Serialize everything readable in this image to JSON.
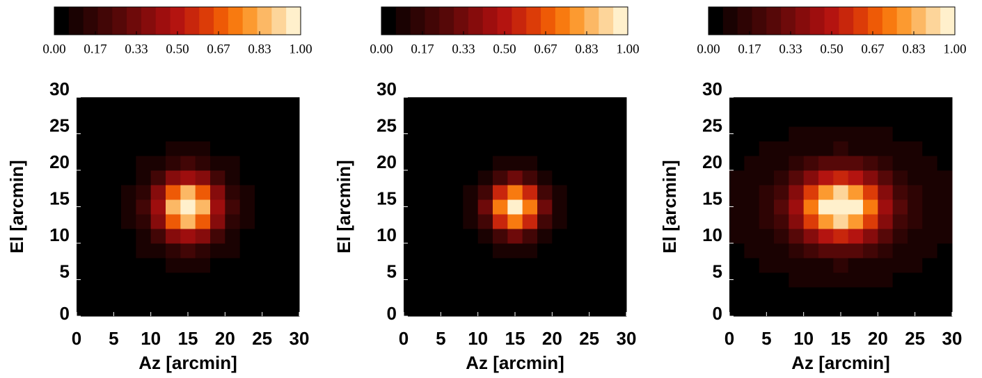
{
  "chart_data": [
    {
      "type": "heatmap",
      "xlabel": "Az [arcmin]",
      "ylabel": "El [arcmin]",
      "x": [
        1,
        3,
        5,
        7,
        9,
        11,
        13,
        15,
        17,
        19,
        21,
        23,
        25,
        27,
        29
      ],
      "y": [
        1,
        3,
        5,
        7,
        9,
        11,
        13,
        15,
        17,
        19,
        21,
        23,
        25,
        27,
        29
      ],
      "z": [
        [
          0.04,
          0.04,
          0.04,
          0.04,
          0.04,
          0.04,
          0.04,
          0.04,
          0.04,
          0.04,
          0.04,
          0.04,
          0.04,
          0.04,
          0.04
        ],
        [
          0.04,
          0.04,
          0.04,
          0.04,
          0.04,
          0.04,
          0.04,
          0.04,
          0.04,
          0.04,
          0.04,
          0.04,
          0.04,
          0.04,
          0.04
        ],
        [
          0.04,
          0.04,
          0.04,
          0.04,
          0.04,
          0.04,
          0.04,
          0.04,
          0.04,
          0.04,
          0.04,
          0.04,
          0.04,
          0.04,
          0.04
        ],
        [
          0.04,
          0.04,
          0.04,
          0.04,
          0.04,
          0.05,
          0.06,
          0.07,
          0.06,
          0.05,
          0.04,
          0.04,
          0.04,
          0.04,
          0.04
        ],
        [
          0.04,
          0.04,
          0.04,
          0.04,
          0.06,
          0.1,
          0.15,
          0.18,
          0.15,
          0.1,
          0.06,
          0.04,
          0.04,
          0.04,
          0.04
        ],
        [
          0.04,
          0.04,
          0.04,
          0.05,
          0.1,
          0.21,
          0.37,
          0.45,
          0.37,
          0.21,
          0.1,
          0.05,
          0.04,
          0.04,
          0.04
        ],
        [
          0.04,
          0.04,
          0.04,
          0.06,
          0.15,
          0.37,
          0.68,
          0.84,
          0.68,
          0.37,
          0.15,
          0.06,
          0.04,
          0.04,
          0.04
        ],
        [
          0.04,
          0.04,
          0.04,
          0.07,
          0.18,
          0.45,
          0.84,
          1.0,
          0.84,
          0.45,
          0.18,
          0.07,
          0.04,
          0.04,
          0.04
        ],
        [
          0.04,
          0.04,
          0.04,
          0.06,
          0.15,
          0.37,
          0.68,
          0.84,
          0.68,
          0.37,
          0.15,
          0.06,
          0.04,
          0.04,
          0.04
        ],
        [
          0.04,
          0.04,
          0.04,
          0.05,
          0.1,
          0.21,
          0.37,
          0.45,
          0.37,
          0.21,
          0.1,
          0.05,
          0.04,
          0.04,
          0.04
        ],
        [
          0.04,
          0.04,
          0.04,
          0.04,
          0.06,
          0.1,
          0.15,
          0.18,
          0.15,
          0.1,
          0.06,
          0.04,
          0.04,
          0.04,
          0.04
        ],
        [
          0.04,
          0.04,
          0.04,
          0.04,
          0.04,
          0.05,
          0.06,
          0.07,
          0.06,
          0.05,
          0.04,
          0.04,
          0.04,
          0.04,
          0.04
        ],
        [
          0.04,
          0.04,
          0.04,
          0.04,
          0.04,
          0.04,
          0.04,
          0.04,
          0.04,
          0.04,
          0.04,
          0.04,
          0.04,
          0.04,
          0.04
        ],
        [
          0.04,
          0.04,
          0.04,
          0.04,
          0.04,
          0.04,
          0.04,
          0.04,
          0.04,
          0.04,
          0.04,
          0.04,
          0.04,
          0.04,
          0.04
        ],
        [
          0.04,
          0.04,
          0.04,
          0.04,
          0.04,
          0.04,
          0.04,
          0.04,
          0.04,
          0.04,
          0.04,
          0.04,
          0.04,
          0.04,
          0.04
        ]
      ],
      "xlim": [
        0,
        30
      ],
      "ylim": [
        0,
        30
      ],
      "xticks": [
        0,
        5,
        10,
        15,
        20,
        25,
        30
      ],
      "yticks": [
        0,
        5,
        10,
        15,
        20,
        25,
        30
      ],
      "colorbar": {
        "lim": [
          0,
          1
        ],
        "ticks": [
          {
            "value": 0,
            "label": "0.00"
          },
          {
            "value": 0.1667,
            "label": "0.17"
          },
          {
            "value": 0.3333,
            "label": "0.33"
          },
          {
            "value": 0.5,
            "label": "0.50"
          },
          {
            "value": 0.6667,
            "label": "0.67"
          },
          {
            "value": 0.8333,
            "label": "0.83"
          },
          {
            "value": 1,
            "label": "1.00"
          }
        ],
        "colors": [
          "#000000",
          "#1a0202",
          "#2e0404",
          "#420606",
          "#560808",
          "#6e0a0a",
          "#860c0c",
          "#9e0e0e",
          "#b41410",
          "#c8260c",
          "#dc3c08",
          "#ee5a06",
          "#f87a10",
          "#fc9a30",
          "#fcb865",
          "#fdd59a",
          "#fff0cc"
        ]
      }
    },
    {
      "type": "heatmap",
      "xlabel": "Az [arcmin]",
      "ylabel": "El [arcmin]",
      "x": [
        1,
        3,
        5,
        7,
        9,
        11,
        13,
        15,
        17,
        19,
        21,
        23,
        25,
        27,
        29
      ],
      "y": [
        1,
        3,
        5,
        7,
        9,
        11,
        13,
        15,
        17,
        19,
        21,
        23,
        25,
        27,
        29
      ],
      "z": [
        [
          0.03,
          0.03,
          0.03,
          0.03,
          0.03,
          0.03,
          0.03,
          0.03,
          0.03,
          0.03,
          0.03,
          0.03,
          0.03,
          0.03,
          0.03
        ],
        [
          0.03,
          0.03,
          0.03,
          0.03,
          0.03,
          0.03,
          0.03,
          0.03,
          0.03,
          0.03,
          0.03,
          0.03,
          0.03,
          0.03,
          0.03
        ],
        [
          0.03,
          0.03,
          0.03,
          0.03,
          0.03,
          0.03,
          0.03,
          0.03,
          0.03,
          0.03,
          0.03,
          0.03,
          0.03,
          0.03,
          0.03
        ],
        [
          0.03,
          0.03,
          0.03,
          0.03,
          0.03,
          0.03,
          0.04,
          0.04,
          0.04,
          0.03,
          0.03,
          0.03,
          0.03,
          0.03,
          0.03
        ],
        [
          0.03,
          0.03,
          0.03,
          0.03,
          0.03,
          0.05,
          0.07,
          0.09,
          0.07,
          0.05,
          0.03,
          0.03,
          0.03,
          0.03,
          0.03
        ],
        [
          0.03,
          0.03,
          0.03,
          0.03,
          0.05,
          0.11,
          0.23,
          0.31,
          0.23,
          0.11,
          0.05,
          0.03,
          0.03,
          0.03,
          0.03
        ],
        [
          0.03,
          0.03,
          0.03,
          0.04,
          0.07,
          0.23,
          0.56,
          0.76,
          0.56,
          0.23,
          0.07,
          0.04,
          0.03,
          0.03,
          0.03
        ],
        [
          0.03,
          0.03,
          0.03,
          0.04,
          0.09,
          0.31,
          0.76,
          1.0,
          0.76,
          0.31,
          0.09,
          0.04,
          0.03,
          0.03,
          0.03
        ],
        [
          0.03,
          0.03,
          0.03,
          0.04,
          0.07,
          0.23,
          0.56,
          0.76,
          0.56,
          0.23,
          0.07,
          0.04,
          0.03,
          0.03,
          0.03
        ],
        [
          0.03,
          0.03,
          0.03,
          0.03,
          0.05,
          0.11,
          0.23,
          0.31,
          0.23,
          0.11,
          0.05,
          0.03,
          0.03,
          0.03,
          0.03
        ],
        [
          0.03,
          0.03,
          0.03,
          0.03,
          0.03,
          0.05,
          0.07,
          0.09,
          0.07,
          0.05,
          0.03,
          0.03,
          0.03,
          0.03,
          0.03
        ],
        [
          0.03,
          0.03,
          0.03,
          0.03,
          0.03,
          0.03,
          0.04,
          0.04,
          0.04,
          0.03,
          0.03,
          0.03,
          0.03,
          0.03,
          0.03
        ],
        [
          0.03,
          0.03,
          0.03,
          0.03,
          0.03,
          0.03,
          0.03,
          0.03,
          0.03,
          0.03,
          0.03,
          0.03,
          0.03,
          0.03,
          0.03
        ],
        [
          0.03,
          0.03,
          0.03,
          0.03,
          0.03,
          0.03,
          0.03,
          0.03,
          0.03,
          0.03,
          0.03,
          0.03,
          0.03,
          0.03,
          0.03
        ],
        [
          0.03,
          0.03,
          0.03,
          0.03,
          0.03,
          0.03,
          0.03,
          0.03,
          0.03,
          0.03,
          0.03,
          0.03,
          0.03,
          0.03,
          0.03
        ]
      ],
      "xlim": [
        0,
        30
      ],
      "ylim": [
        0,
        30
      ],
      "xticks": [
        0,
        5,
        10,
        15,
        20,
        25,
        30
      ],
      "yticks": [
        0,
        5,
        10,
        15,
        20,
        25,
        30
      ],
      "colorbar": {
        "lim": [
          0,
          1
        ],
        "ticks": [
          {
            "value": 0,
            "label": "0.00"
          },
          {
            "value": 0.1667,
            "label": "0.17"
          },
          {
            "value": 0.3333,
            "label": "0.33"
          },
          {
            "value": 0.5,
            "label": "0.50"
          },
          {
            "value": 0.6667,
            "label": "0.67"
          },
          {
            "value": 0.8333,
            "label": "0.83"
          },
          {
            "value": 1,
            "label": "1.00"
          }
        ],
        "colors": [
          "#000000",
          "#1a0202",
          "#2e0404",
          "#420606",
          "#560808",
          "#6e0a0a",
          "#860c0c",
          "#9e0e0e",
          "#b41410",
          "#c8260c",
          "#dc3c08",
          "#ee5a06",
          "#f87a10",
          "#fc9a30",
          "#fcb865",
          "#fdd59a",
          "#fff0cc"
        ]
      }
    },
    {
      "type": "heatmap",
      "xlabel": "Az [arcmin]",
      "ylabel": "El [arcmin]",
      "x": [
        1,
        3,
        5,
        7,
        9,
        11,
        13,
        15,
        17,
        19,
        21,
        23,
        25,
        27,
        29
      ],
      "y": [
        1,
        3,
        5,
        7,
        9,
        11,
        13,
        15,
        17,
        19,
        21,
        23,
        25,
        27,
        29
      ],
      "z": [
        [
          0.05,
          0.05,
          0.05,
          0.05,
          0.05,
          0.05,
          0.05,
          0.05,
          0.05,
          0.05,
          0.05,
          0.05,
          0.05,
          0.05,
          0.05
        ],
        [
          0.05,
          0.05,
          0.05,
          0.05,
          0.05,
          0.05,
          0.05,
          0.05,
          0.05,
          0.05,
          0.05,
          0.05,
          0.05,
          0.05,
          0.05
        ],
        [
          0.05,
          0.05,
          0.05,
          0.05,
          0.06,
          0.06,
          0.07,
          0.07,
          0.07,
          0.06,
          0.06,
          0.05,
          0.05,
          0.05,
          0.05
        ],
        [
          0.05,
          0.05,
          0.06,
          0.06,
          0.08,
          0.1,
          0.11,
          0.12,
          0.11,
          0.1,
          0.08,
          0.06,
          0.06,
          0.05,
          0.05
        ],
        [
          0.05,
          0.06,
          0.07,
          0.1,
          0.14,
          0.2,
          0.26,
          0.28,
          0.26,
          0.2,
          0.14,
          0.1,
          0.07,
          0.06,
          0.05
        ],
        [
          0.06,
          0.07,
          0.1,
          0.16,
          0.26,
          0.4,
          0.52,
          0.57,
          0.52,
          0.4,
          0.26,
          0.16,
          0.1,
          0.07,
          0.06
        ],
        [
          0.06,
          0.08,
          0.13,
          0.23,
          0.4,
          0.62,
          0.82,
          0.9,
          0.82,
          0.62,
          0.4,
          0.23,
          0.13,
          0.08,
          0.06
        ],
        [
          0.06,
          0.08,
          0.14,
          0.26,
          0.46,
          0.72,
          0.96,
          1.0,
          0.96,
          0.72,
          0.46,
          0.26,
          0.14,
          0.08,
          0.06
        ],
        [
          0.06,
          0.08,
          0.13,
          0.23,
          0.4,
          0.62,
          0.82,
          0.9,
          0.82,
          0.62,
          0.4,
          0.23,
          0.13,
          0.08,
          0.06
        ],
        [
          0.06,
          0.07,
          0.1,
          0.16,
          0.26,
          0.4,
          0.52,
          0.57,
          0.52,
          0.4,
          0.26,
          0.16,
          0.1,
          0.07,
          0.06
        ],
        [
          0.05,
          0.06,
          0.07,
          0.1,
          0.14,
          0.2,
          0.26,
          0.28,
          0.26,
          0.2,
          0.14,
          0.1,
          0.07,
          0.06,
          0.05
        ],
        [
          0.05,
          0.05,
          0.06,
          0.06,
          0.08,
          0.1,
          0.11,
          0.12,
          0.11,
          0.1,
          0.08,
          0.06,
          0.06,
          0.05,
          0.05
        ],
        [
          0.05,
          0.05,
          0.05,
          0.05,
          0.06,
          0.06,
          0.07,
          0.07,
          0.07,
          0.06,
          0.06,
          0.05,
          0.05,
          0.05,
          0.05
        ],
        [
          0.05,
          0.05,
          0.05,
          0.05,
          0.05,
          0.05,
          0.05,
          0.05,
          0.05,
          0.05,
          0.05,
          0.05,
          0.05,
          0.05,
          0.05
        ],
        [
          0.05,
          0.05,
          0.05,
          0.05,
          0.05,
          0.05,
          0.05,
          0.05,
          0.05,
          0.05,
          0.05,
          0.05,
          0.05,
          0.05,
          0.05
        ]
      ],
      "xlim": [
        0,
        30
      ],
      "ylim": [
        0,
        30
      ],
      "xticks": [
        0,
        5,
        10,
        15,
        20,
        25,
        30
      ],
      "yticks": [
        0,
        5,
        10,
        15,
        20,
        25,
        30
      ],
      "colorbar": {
        "lim": [
          0,
          1
        ],
        "ticks": [
          {
            "value": 0,
            "label": "0.00"
          },
          {
            "value": 0.1667,
            "label": "0.17"
          },
          {
            "value": 0.3333,
            "label": "0.33"
          },
          {
            "value": 0.5,
            "label": "0.50"
          },
          {
            "value": 0.6667,
            "label": "0.67"
          },
          {
            "value": 0.8333,
            "label": "0.83"
          },
          {
            "value": 1,
            "label": "1.00"
          }
        ],
        "colors": [
          "#000000",
          "#1a0202",
          "#2e0404",
          "#420606",
          "#560808",
          "#6e0a0a",
          "#860c0c",
          "#9e0e0e",
          "#b41410",
          "#c8260c",
          "#dc3c08",
          "#ee5a06",
          "#f87a10",
          "#fc9a30",
          "#fcb865",
          "#fdd59a",
          "#fff0cc"
        ]
      }
    }
  ]
}
